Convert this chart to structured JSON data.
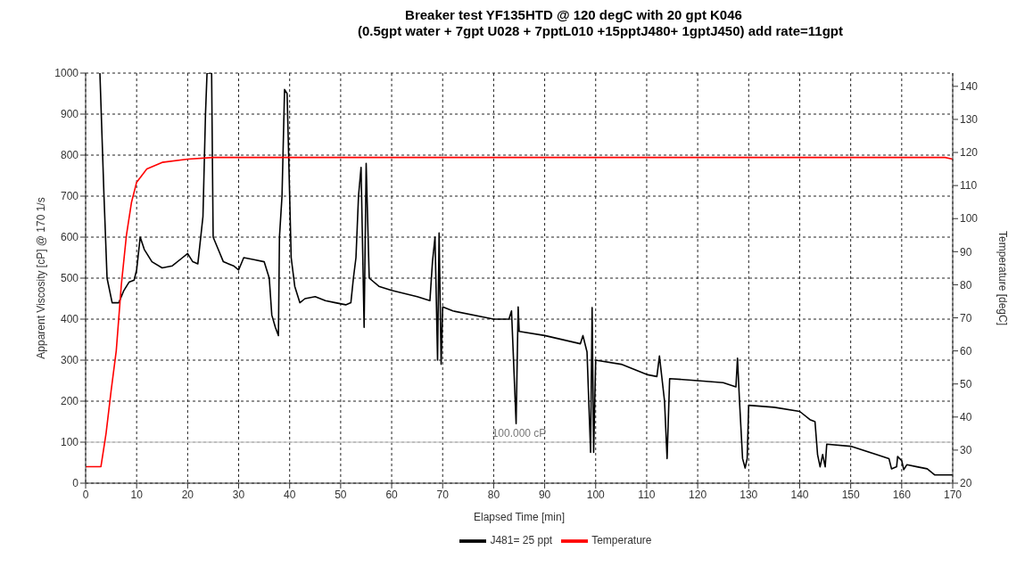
{
  "chart_data": {
    "type": "line",
    "title": "Breaker test YF135HTD @ 120 degC with 20 gpt K046",
    "subtitle": "(0.5gpt water + 7gpt U028 + 7pptL010 +15pptJ480+ 1gptJ450) add rate=11gpt",
    "xlabel": "Elapsed Time [min]",
    "ylabel": "Apparent Viscosity [cP] @ 170 1/s",
    "y2label": "Temperature [degC]",
    "xlim": [
      0,
      170
    ],
    "xticks": [
      0,
      10,
      20,
      30,
      40,
      50,
      60,
      70,
      80,
      90,
      100,
      110,
      120,
      130,
      140,
      150,
      160,
      170
    ],
    "ylim": [
      0,
      1000
    ],
    "yticks": [
      0,
      100,
      200,
      300,
      400,
      500,
      600,
      700,
      800,
      900,
      1000
    ],
    "y2lim": [
      20,
      144
    ],
    "y2ticks": [
      20,
      30,
      40,
      50,
      60,
      70,
      80,
      90,
      100,
      110,
      120,
      130,
      140
    ],
    "grid": true,
    "legend": "bottom",
    "ref_lines": [
      {
        "axis": "y",
        "value": 100,
        "label": "100.000 cP",
        "color": "#d0d0d0"
      }
    ],
    "series": [
      {
        "name": "J481= 25 ppt",
        "color": "#000000",
        "x": [
          2.8,
          3.6,
          4.2,
          5.2,
          6.5,
          7.5,
          8.5,
          9.5,
          10,
          10.7,
          11.5,
          13,
          15,
          17,
          19,
          20,
          21,
          22,
          23,
          23.5,
          23.8,
          24.7,
          25,
          26,
          27,
          29,
          30,
          31,
          33,
          35,
          36,
          36.5,
          37.2,
          37.8,
          38,
          38.5,
          39,
          39.5,
          40,
          40.3,
          41,
          42,
          43,
          45,
          47,
          49,
          51,
          52,
          52.5,
          53,
          53.5,
          54,
          54.6,
          55,
          55.6,
          57.5,
          60,
          65,
          67.5,
          68,
          68.5,
          69,
          69.3,
          69.7,
          70,
          72,
          80,
          83,
          83.5,
          84.4,
          84.8,
          85,
          90,
          97,
          97.5,
          98.3,
          99,
          99.3,
          99.6,
          100,
          105,
          110,
          112,
          112.5,
          113.5,
          114,
          114.5,
          120,
          125,
          127.5,
          127.8,
          128.2,
          128.8,
          129.3,
          129.7,
          130,
          135,
          140,
          142,
          143,
          143.5,
          144,
          144.5,
          145,
          145.3,
          150,
          155,
          157.5,
          158,
          159,
          159.2,
          160,
          160.4,
          161,
          163,
          165,
          166.5,
          170
        ],
        "values": [
          1000,
          700,
          500,
          440,
          440,
          470,
          490,
          495,
          520,
          600,
          570,
          540,
          525,
          530,
          550,
          560,
          540,
          535,
          650,
          900,
          1000,
          1000,
          600,
          570,
          540,
          530,
          520,
          550,
          545,
          540,
          500,
          410,
          380,
          360,
          600,
          700,
          960,
          950,
          700,
          550,
          480,
          440,
          450,
          455,
          445,
          440,
          435,
          440,
          500,
          550,
          700,
          770,
          380,
          780,
          500,
          480,
          470,
          455,
          445,
          540,
          600,
          300,
          610,
          290,
          430,
          420,
          400,
          400,
          420,
          145,
          430,
          370,
          360,
          340,
          360,
          320,
          75,
          428,
          75,
          300,
          290,
          265,
          260,
          310,
          200,
          60,
          255,
          250,
          245,
          235,
          305,
          200,
          60,
          37,
          60,
          190,
          185,
          175,
          155,
          150,
          70,
          40,
          70,
          40,
          95,
          90,
          70,
          60,
          35,
          40,
          65,
          55,
          33,
          45,
          40,
          35,
          20,
          20
        ]
      },
      {
        "name": "Temperature",
        "color": "#ff0000",
        "axis": "y2",
        "x": [
          0,
          3,
          4,
          5,
          6,
          7,
          8,
          9,
          10,
          12,
          15,
          20,
          25,
          40,
          60,
          100,
          168.5,
          170
        ],
        "values": [
          25,
          25,
          35,
          48,
          60,
          80,
          95,
          105,
          111,
          115,
          117,
          118,
          118.5,
          118.5,
          118.5,
          118.5,
          118.5,
          118
        ]
      }
    ]
  }
}
